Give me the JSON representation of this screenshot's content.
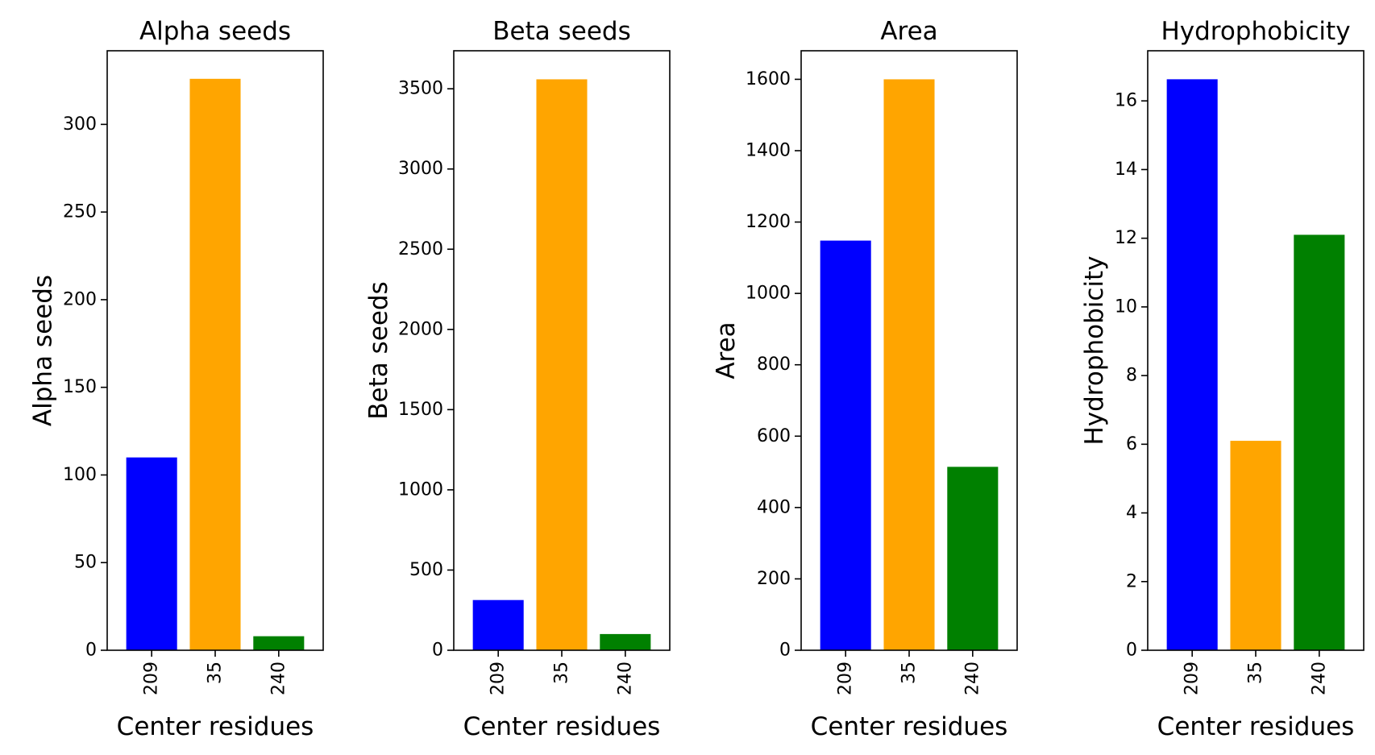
{
  "chart_data": [
    {
      "type": "bar",
      "title": "Alpha seeds",
      "xlabel": "Center residues",
      "ylabel": "Alpha seeds",
      "categories": [
        "209",
        "35",
        "240"
      ],
      "values": [
        110,
        326,
        8
      ],
      "colors": [
        "#0000ff",
        "#ffa500",
        "#008000"
      ],
      "ylim": [
        0,
        342
      ],
      "yticks": [
        0,
        50,
        100,
        150,
        200,
        250,
        300
      ],
      "ytick_labels": [
        "0",
        "50",
        "100",
        "150",
        "200",
        "250",
        "300"
      ],
      "grid": false
    },
    {
      "type": "bar",
      "title": "Beta seeds",
      "xlabel": "Center residues",
      "ylabel": "Beta seeds",
      "categories": [
        "209",
        "35",
        "240"
      ],
      "values": [
        313,
        3559,
        101
      ],
      "colors": [
        "#0000ff",
        "#ffa500",
        "#008000"
      ],
      "ylim": [
        0,
        3737
      ],
      "yticks": [
        0,
        500,
        1000,
        1500,
        2000,
        2500,
        3000,
        3500
      ],
      "ytick_labels": [
        "0",
        "500",
        "1000",
        "1500",
        "2000",
        "2500",
        "3000",
        "3500"
      ],
      "grid": false
    },
    {
      "type": "bar",
      "title": "Area",
      "xlabel": "Center residues",
      "ylabel": "Area",
      "categories": [
        "209",
        "35",
        "240"
      ],
      "values": [
        1148,
        1600,
        514
      ],
      "colors": [
        "#0000ff",
        "#ffa500",
        "#008000"
      ],
      "ylim": [
        0,
        1680
      ],
      "yticks": [
        0,
        200,
        400,
        600,
        800,
        1000,
        1200,
        1400,
        1600
      ],
      "ytick_labels": [
        "0",
        "200",
        "400",
        "600",
        "800",
        "1000",
        "1200",
        "1400",
        "1600"
      ],
      "grid": false
    },
    {
      "type": "bar",
      "title": "Hydrophobicity",
      "xlabel": "Center residues",
      "ylabel": "Hydrophobicity",
      "categories": [
        "209",
        "35",
        "240"
      ],
      "values": [
        16.63,
        6.1,
        12.1
      ],
      "colors": [
        "#0000ff",
        "#ffa500",
        "#008000"
      ],
      "ylim": [
        0,
        17.46
      ],
      "yticks": [
        0,
        2,
        4,
        6,
        8,
        10,
        12,
        14,
        16
      ],
      "ytick_labels": [
        "0",
        "2",
        "4",
        "6",
        "8",
        "10",
        "12",
        "14",
        "16"
      ],
      "grid": false
    }
  ]
}
